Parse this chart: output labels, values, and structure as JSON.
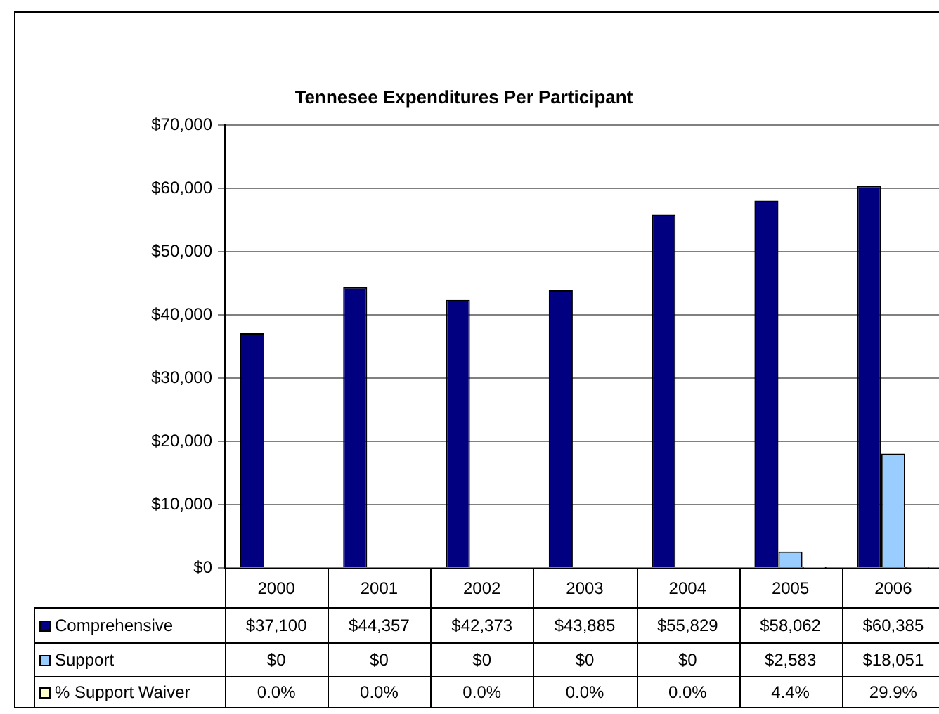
{
  "chart_data": {
    "type": "bar",
    "title": "Tennesee Expenditures Per Participant",
    "categories": [
      "2000",
      "2001",
      "2002",
      "2003",
      "2004",
      "2005",
      "2006"
    ],
    "series": [
      {
        "name": "Comprehensive",
        "color": "#000080",
        "values": [
          37100,
          44357,
          42373,
          43885,
          55829,
          58062,
          60385
        ],
        "value_labels": [
          "$37,100",
          "$44,357",
          "$42,373",
          "$43,885",
          "$55,829",
          "$58,062",
          "$60,385"
        ]
      },
      {
        "name": "Support",
        "color": "#99ccff",
        "values": [
          0,
          0,
          0,
          0,
          0,
          2583,
          18051
        ],
        "value_labels": [
          "$0",
          "$0",
          "$0",
          "$0",
          "$0",
          "$2,583",
          "$18,051"
        ]
      },
      {
        "name": "% Support Waiver",
        "color": "#ffffcc",
        "values": [
          0,
          0,
          0,
          0,
          0,
          4.4,
          29.9
        ],
        "value_labels": [
          "0.0%",
          "0.0%",
          "0.0%",
          "0.0%",
          "0.0%",
          "4.4%",
          "29.9%"
        ]
      }
    ],
    "ylim": [
      0,
      70000
    ],
    "yticks": [
      {
        "value": 0,
        "label": "$0"
      },
      {
        "value": 10000,
        "label": "$10,000"
      },
      {
        "value": 20000,
        "label": "$20,000"
      },
      {
        "value": 30000,
        "label": "$30,000"
      },
      {
        "value": 40000,
        "label": "$40,000"
      },
      {
        "value": 50000,
        "label": "$50,000"
      },
      {
        "value": 60000,
        "label": "$60,000"
      },
      {
        "value": 70000,
        "label": "$70,000"
      }
    ],
    "grid": "y",
    "legend": "bottom"
  }
}
